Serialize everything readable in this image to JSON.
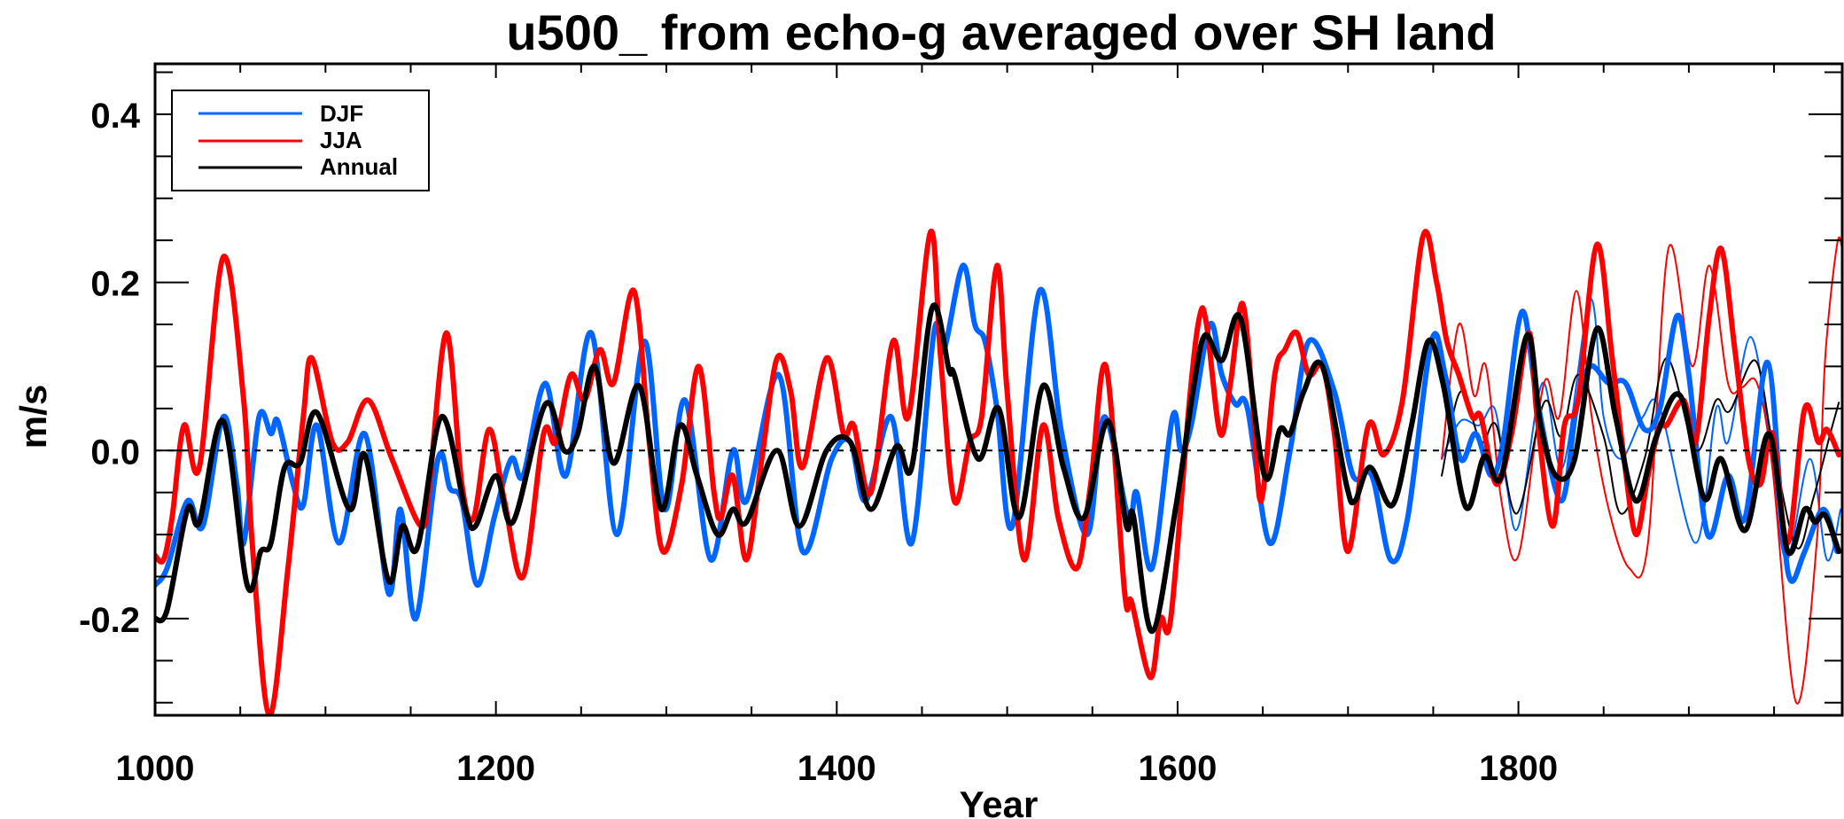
{
  "chart_data": {
    "type": "line",
    "title": "u500_ from echo-g averaged over SH land",
    "xlabel": "Year",
    "ylabel": "m/s",
    "xlim": [
      1000,
      1990
    ],
    "ylim": [
      -0.315,
      0.46
    ],
    "xticks": [
      1000,
      1200,
      1400,
      1600,
      1800
    ],
    "xtick_labels": [
      "1000",
      "1200",
      "1400",
      "1600",
      "1800"
    ],
    "x_minor_step": 50,
    "yticks": [
      -0.2,
      0.0,
      0.2,
      0.4
    ],
    "ytick_labels": [
      "-0.2",
      "0.0",
      "0.2",
      "0.4"
    ],
    "y_minor_step": 0.05,
    "zero_line": "dashed",
    "grid": false,
    "legend": {
      "position": "top-left",
      "entries": [
        {
          "label": "DJF",
          "color": "#0066ff"
        },
        {
          "label": "JJA",
          "color": "#ff0000"
        },
        {
          "label": "Annual",
          "color": "#000000"
        }
      ]
    },
    "series": [
      {
        "name": "DJF",
        "style": "thick",
        "color": "#0066ff",
        "x": [
          1000,
          1007,
          1019,
          1028,
          1040,
          1048,
          1052,
          1061,
          1068,
          1072,
          1081,
          1087,
          1095,
          1108,
          1123,
          1137,
          1144,
          1153,
          1166,
          1173,
          1180,
          1189,
          1199,
          1209,
          1216,
          1229,
          1241,
          1256,
          1271,
          1287,
          1299,
          1311,
          1326,
          1339,
          1347,
          1366,
          1380,
          1397,
          1408,
          1417,
          1432,
          1444,
          1457,
          1463,
          1474,
          1481,
          1487,
          1494,
          1503,
          1519,
          1532,
          1547,
          1557,
          1571,
          1576,
          1585,
          1597,
          1602,
          1608,
          1619,
          1626,
          1634,
          1641,
          1654,
          1666,
          1677,
          1692,
          1703,
          1714,
          1725,
          1735,
          1749,
          1757,
          1766,
          1775,
          1784,
          1791,
          1802,
          1811,
          1825,
          1834,
          1842,
          1853,
          1863,
          1874,
          1883,
          1893,
          1900,
          1911,
          1923,
          1933,
          1946,
          1955,
          1960,
          1968,
          1979,
          1987
        ],
        "y": [
          -0.16,
          -0.14,
          -0.06,
          -0.09,
          0.04,
          -0.04,
          -0.11,
          0.04,
          0.02,
          0.035,
          -0.04,
          -0.065,
          0.03,
          -0.11,
          0.02,
          -0.17,
          -0.07,
          -0.2,
          -0.01,
          -0.045,
          -0.06,
          -0.16,
          -0.08,
          -0.01,
          -0.03,
          0.08,
          -0.03,
          0.14,
          -0.1,
          0.13,
          -0.07,
          0.06,
          -0.13,
          0.0,
          -0.06,
          0.09,
          -0.12,
          -0.01,
          0.01,
          -0.06,
          0.04,
          -0.11,
          0.14,
          0.12,
          0.22,
          0.15,
          0.13,
          0.05,
          -0.09,
          0.19,
          0.02,
          -0.1,
          0.04,
          -0.08,
          -0.05,
          -0.14,
          0.04,
          0.0,
          0.03,
          0.15,
          0.09,
          0.055,
          0.05,
          -0.11,
          0.0,
          0.13,
          0.07,
          -0.03,
          -0.03,
          -0.13,
          -0.08,
          0.13,
          0.09,
          -0.01,
          0.02,
          -0.03,
          0.01,
          0.165,
          0.06,
          -0.06,
          0.05,
          0.1,
          0.08,
          0.08,
          0.025,
          0.05,
          0.16,
          0.09,
          -0.1,
          -0.03,
          -0.08,
          0.105,
          -0.09,
          -0.155,
          -0.12,
          -0.07,
          -0.12
        ]
      },
      {
        "name": "JJA",
        "style": "thick",
        "color": "#ff0000",
        "x": [
          1000,
          1005,
          1010,
          1017,
          1026,
          1040,
          1052,
          1057,
          1067,
          1078,
          1087,
          1092,
          1104,
          1113,
          1125,
          1139,
          1156,
          1161,
          1171,
          1180,
          1187,
          1196,
          1205,
          1216,
          1228,
          1235,
          1244,
          1252,
          1261,
          1269,
          1281,
          1290,
          1298,
          1309,
          1319,
          1328,
          1332,
          1339,
          1347,
          1356,
          1365,
          1373,
          1380,
          1394,
          1404,
          1410,
          1420,
          1433,
          1442,
          1455,
          1461,
          1469,
          1478,
          1485,
          1494,
          1500,
          1510,
          1521,
          1530,
          1541,
          1549,
          1558,
          1569,
          1573,
          1584,
          1590,
          1596,
          1607,
          1613,
          1617,
          1625,
          1631,
          1638,
          1644,
          1649,
          1657,
          1663,
          1670,
          1677,
          1685,
          1692,
          1700,
          1712,
          1721,
          1732,
          1744,
          1752,
          1758,
          1765,
          1773,
          1778,
          1787,
          1796,
          1806,
          1811,
          1820,
          1827,
          1835,
          1846,
          1855,
          1862,
          1869,
          1876,
          1883,
          1887,
          1897,
          1904,
          1912,
          1919,
          1927,
          1935,
          1942,
          1949,
          1958,
          1968,
          1976,
          1981,
          1988
        ],
        "y": [
          -0.125,
          -0.13,
          -0.08,
          0.03,
          -0.02,
          0.23,
          0.06,
          -0.11,
          -0.315,
          -0.14,
          0.04,
          0.11,
          0.01,
          0.01,
          0.06,
          -0.01,
          -0.09,
          -0.04,
          0.14,
          -0.04,
          -0.08,
          0.025,
          -0.06,
          -0.15,
          0.02,
          0.01,
          0.09,
          0.06,
          0.12,
          0.08,
          0.19,
          0.01,
          -0.12,
          -0.04,
          0.1,
          -0.05,
          -0.08,
          -0.03,
          -0.13,
          -0.01,
          0.11,
          0.07,
          -0.02,
          0.11,
          0.02,
          0.03,
          -0.05,
          0.13,
          0.04,
          0.26,
          0.11,
          -0.06,
          0.01,
          0.04,
          0.22,
          0.07,
          -0.13,
          0.03,
          -0.08,
          -0.14,
          -0.04,
          0.1,
          -0.17,
          -0.18,
          -0.27,
          -0.2,
          -0.2,
          0.06,
          0.16,
          0.15,
          0.02,
          0.08,
          0.175,
          0.06,
          -0.06,
          0.09,
          0.12,
          0.14,
          0.09,
          0.1,
          0.02,
          -0.12,
          0.03,
          -0.005,
          0.06,
          0.255,
          0.2,
          0.13,
          0.09,
          0.04,
          0.04,
          -0.04,
          0.02,
          0.14,
          0.04,
          -0.09,
          0.03,
          0.06,
          0.245,
          0.11,
          -0.01,
          -0.1,
          -0.03,
          0.03,
          0.03,
          0.06,
          0.01,
          0.16,
          0.24,
          0.12,
          -0.01,
          -0.04,
          0.02,
          -0.11,
          0.05,
          0.01,
          0.025,
          -0.005
        ]
      },
      {
        "name": "Annual",
        "style": "thick",
        "color": "#000000",
        "x": [
          1000,
          1007,
          1019,
          1026,
          1040,
          1054,
          1062,
          1068,
          1076,
          1085,
          1095,
          1114,
          1123,
          1137,
          1145,
          1154,
          1168,
          1182,
          1188,
          1200,
          1210,
          1229,
          1240,
          1248,
          1258,
          1269,
          1284,
          1297,
          1308,
          1318,
          1330,
          1339,
          1347,
          1365,
          1378,
          1394,
          1408,
          1420,
          1435,
          1444,
          1456,
          1466,
          1469,
          1483,
          1495,
          1507,
          1521,
          1533,
          1545,
          1559,
          1570,
          1574,
          1585,
          1599,
          1609,
          1616,
          1626,
          1637,
          1651,
          1660,
          1666,
          1674,
          1685,
          1699,
          1704,
          1713,
          1726,
          1737,
          1747,
          1756,
          1769,
          1780,
          1790,
          1805,
          1813,
          1822,
          1833,
          1846,
          1857,
          1869,
          1881,
          1895,
          1909,
          1919,
          1933,
          1947,
          1958,
          1968,
          1974,
          1980,
          1988
        ],
        "y": [
          -0.2,
          -0.19,
          -0.07,
          -0.085,
          0.035,
          -0.16,
          -0.12,
          -0.11,
          -0.02,
          -0.015,
          0.045,
          -0.07,
          -0.005,
          -0.155,
          -0.09,
          -0.115,
          0.04,
          -0.07,
          -0.09,
          -0.03,
          -0.085,
          0.055,
          0.0,
          0.02,
          0.1,
          -0.015,
          0.077,
          -0.07,
          0.03,
          -0.03,
          -0.1,
          -0.07,
          -0.085,
          0.0,
          -0.09,
          0.0,
          0.01,
          -0.07,
          0.005,
          -0.02,
          0.17,
          0.095,
          0.09,
          -0.01,
          0.05,
          -0.08,
          0.077,
          -0.02,
          -0.08,
          0.035,
          -0.09,
          -0.077,
          -0.215,
          -0.067,
          0.07,
          0.137,
          0.107,
          0.157,
          -0.03,
          0.025,
          0.02,
          0.07,
          0.1,
          -0.04,
          -0.06,
          -0.02,
          -0.065,
          0.027,
          0.13,
          0.077,
          -0.067,
          -0.007,
          -0.03,
          0.137,
          0.03,
          -0.03,
          -0.01,
          0.145,
          0.04,
          -0.06,
          0.017,
          0.065,
          -0.057,
          -0.01,
          -0.095,
          0.02,
          -0.12,
          -0.07,
          -0.085,
          -0.077,
          -0.12
        ]
      },
      {
        "name": "DJF (thin, 1755-1990)",
        "style": "thin",
        "color": "#0066ff",
        "x": [
          1755,
          1766,
          1777,
          1786,
          1793,
          1800,
          1814,
          1826,
          1842,
          1850,
          1860,
          1873,
          1883,
          1904,
          1916,
          1923,
          1936,
          1947,
          1957,
          1971,
          1981,
          1989
        ],
        "y": [
          -0.01,
          0.035,
          0.03,
          0.05,
          -0.04,
          -0.09,
          0.08,
          -0.02,
          0.18,
          0.04,
          -0.01,
          0.04,
          0.05,
          -0.11,
          0.05,
          0.01,
          0.135,
          0.02,
          -0.13,
          -0.01,
          -0.13,
          -0.07
        ]
      },
      {
        "name": "JJA (thin, 1755-1990)",
        "style": "thin",
        "color": "#ff0000",
        "x": [
          1755,
          1765,
          1774,
          1781,
          1790,
          1800,
          1815,
          1824,
          1834,
          1843,
          1853,
          1865,
          1876,
          1888,
          1902,
          1912,
          1923,
          1931,
          1940,
          1949,
          1963,
          1975,
          1980,
          1987,
          1990
        ],
        "y": [
          -0.01,
          0.15,
          0.065,
          0.1,
          -0.06,
          -0.125,
          0.08,
          0.04,
          0.19,
          0.04,
          -0.07,
          -0.14,
          -0.11,
          0.24,
          0.1,
          0.22,
          0.08,
          0.075,
          0.08,
          -0.02,
          -0.3,
          -0.11,
          0.11,
          0.245,
          0.24
        ]
      },
      {
        "name": "Annual (thin, 1755-1990)",
        "style": "thin",
        "color": "#000000",
        "x": [
          1755,
          1766,
          1778,
          1787,
          1799,
          1815,
          1825,
          1835,
          1850,
          1860,
          1874,
          1887,
          1904,
          1916,
          1924,
          1939,
          1949,
          1963,
          1973,
          1983,
          1988
        ],
        "y": [
          -0.03,
          0.07,
          0.01,
          0.03,
          -0.075,
          0.057,
          0.017,
          0.09,
          0.017,
          -0.075,
          -0.01,
          0.11,
          0.0,
          0.06,
          0.047,
          0.107,
          0.01,
          -0.115,
          -0.057,
          0.02,
          0.057
        ]
      }
    ]
  }
}
